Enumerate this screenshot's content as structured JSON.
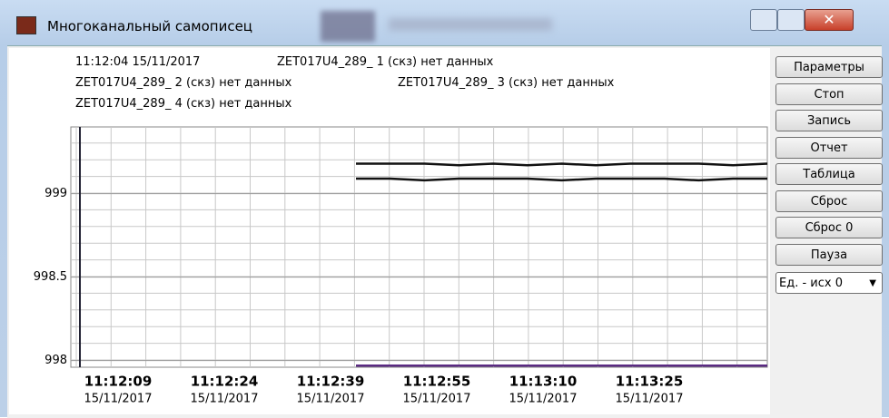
{
  "window": {
    "title": "Многоканальный самописец"
  },
  "header": {
    "timestamp": "11:12:04 15/11/2017",
    "channels": [
      "ZET017U4_289_ 1 (скз) нет данных",
      "ZET017U4_289_ 2 (скз) нет данных",
      "ZET017U4_289_ 3 (скз) нет данных",
      "ZET017U4_289_ 4 (скз) нет данных"
    ]
  },
  "buttons": [
    "Параметры",
    "Стоп",
    "Запись",
    "Отчет",
    "Таблица",
    "Сброс",
    "Сброс 0",
    "Пауза"
  ],
  "dropdown": "Ед. - исх 0",
  "chart_data": {
    "type": "line",
    "ylim": [
      997.96,
      999.4
    ],
    "yticks": [
      999,
      998.5,
      998
    ],
    "xticks": [
      {
        "time": "11:12:09",
        "date": "15/11/2017"
      },
      {
        "time": "11:12:24",
        "date": "15/11/2017"
      },
      {
        "time": "11:12:39",
        "date": "15/11/2017"
      },
      {
        "time": "11:12:55",
        "date": "15/11/2017"
      },
      {
        "time": "11:13:10",
        "date": "15/11/2017"
      },
      {
        "time": "11:13:25",
        "date": "15/11/2017"
      }
    ],
    "grid": true,
    "series": [
      {
        "color": "#111111",
        "values": [
          999.18,
          999.18,
          999.18,
          999.17,
          999.18,
          999.17,
          999.18,
          999.17,
          999.18,
          999.18,
          999.18,
          999.17,
          999.18
        ]
      },
      {
        "color": "#111111",
        "values": [
          999.09,
          999.09,
          999.08,
          999.09,
          999.09,
          999.09,
          999.08,
          999.09,
          999.09,
          999.09,
          999.08,
          999.09,
          999.09
        ]
      },
      {
        "color": "#5a2a82",
        "values": [
          997.97,
          997.97,
          997.97,
          997.97,
          997.97,
          997.97,
          997.97,
          997.97,
          997.97,
          997.97,
          997.97,
          997.97,
          997.97
        ]
      }
    ]
  }
}
